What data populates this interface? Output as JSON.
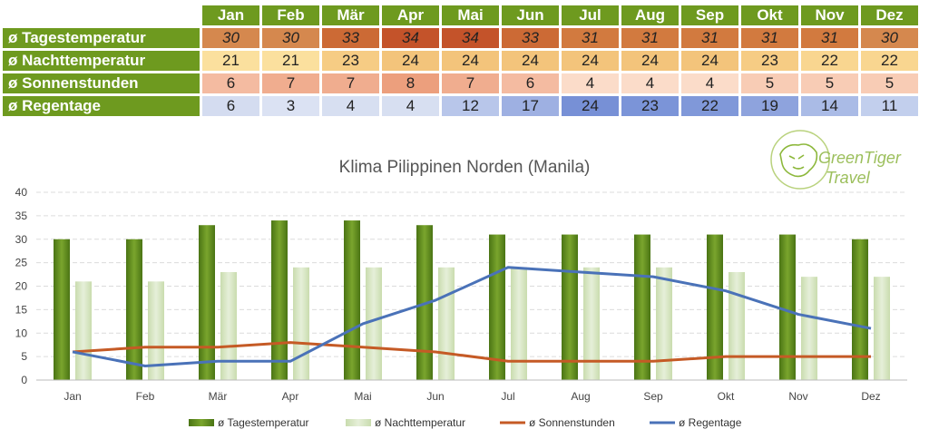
{
  "table": {
    "months": [
      "Jan",
      "Feb",
      "Mär",
      "Apr",
      "Mai",
      "Jun",
      "Jul",
      "Aug",
      "Sep",
      "Okt",
      "Nov",
      "Dez"
    ],
    "rows": [
      {
        "label": "ø Tagestemperatur",
        "values": [
          "30",
          "30",
          "33",
          "34",
          "34",
          "33",
          "31",
          "31",
          "31",
          "31",
          "31",
          "30"
        ],
        "colors": [
          "#d5884e",
          "#d5884e",
          "#cc6a35",
          "#c4532a",
          "#c4532a",
          "#cc6a35",
          "#d27a3f",
          "#d27a3f",
          "#d27a3f",
          "#d27a3f",
          "#d27a3f",
          "#d5884e"
        ]
      },
      {
        "label": "ø Nachttemperatur",
        "values": [
          "21",
          "21",
          "23",
          "24",
          "24",
          "24",
          "24",
          "24",
          "24",
          "23",
          "22",
          "22"
        ],
        "colors": [
          "#fbe09e",
          "#fbe09e",
          "#f6cc84",
          "#f3c47b",
          "#f3c47b",
          "#f3c47b",
          "#f3c47b",
          "#f3c47b",
          "#f3c47b",
          "#f6cc84",
          "#f9d690",
          "#f9d690"
        ]
      },
      {
        "label": "ø Sonnenstunden",
        "values": [
          "6",
          "7",
          "7",
          "8",
          "7",
          "6",
          "4",
          "4",
          "4",
          "5",
          "5",
          "5"
        ],
        "colors": [
          "#f4bba1",
          "#f0ad8f",
          "#f0ad8f",
          "#ec9f7d",
          "#f0ad8f",
          "#f4bba1",
          "#fbdcc9",
          "#fbdcc9",
          "#fbdcc9",
          "#f8ccb5",
          "#f8ccb5",
          "#f8ccb5"
        ]
      },
      {
        "label": "ø Regentage",
        "values": [
          "6",
          "3",
          "4",
          "4",
          "12",
          "17",
          "24",
          "23",
          "22",
          "19",
          "14",
          "11"
        ],
        "colors": [
          "#d4dcf0",
          "#dbe2f3",
          "#d7dff1",
          "#d7dff1",
          "#b8c6ea",
          "#9eb0e2",
          "#7790d6",
          "#7b94d8",
          "#8098d9",
          "#8ea3dd",
          "#aabbe6",
          "#c2cfed"
        ]
      }
    ]
  },
  "chart_data": {
    "type": "bar",
    "title": "Klima Pilippinen Norden (Manila)",
    "categories": [
      "Jan",
      "Feb",
      "Mär",
      "Apr",
      "Mai",
      "Jun",
      "Jul",
      "Aug",
      "Sep",
      "Okt",
      "Nov",
      "Dez"
    ],
    "ylim": [
      0,
      40
    ],
    "yticks": [
      "0",
      "5",
      "10",
      "15",
      "20",
      "25",
      "30",
      "35",
      "40"
    ],
    "grid": true,
    "legend_position": "bottom",
    "series": [
      {
        "name": "ø Tagestemperatur",
        "kind": "bar",
        "color": "#5f8a1c",
        "values": [
          30,
          30,
          33,
          34,
          34,
          33,
          31,
          31,
          31,
          31,
          31,
          30
        ]
      },
      {
        "name": "ø Nachttemperatur",
        "kind": "bar",
        "color": "#d3e4bc",
        "values": [
          21,
          21,
          23,
          24,
          24,
          24,
          24,
          24,
          24,
          23,
          22,
          22
        ]
      },
      {
        "name": "ø Sonnenstunden",
        "kind": "line",
        "color": "#c55a25",
        "values": [
          6,
          7,
          7,
          8,
          7,
          6,
          4,
          4,
          4,
          5,
          5,
          5
        ]
      },
      {
        "name": "ø Regentage",
        "kind": "line",
        "color": "#4a72b8",
        "values": [
          6,
          3,
          4,
          4,
          12,
          17,
          24,
          23,
          22,
          19,
          14,
          11
        ]
      }
    ]
  },
  "logo": {
    "line1": "Green",
    "line2": "Tiger",
    "line3": "Travel"
  }
}
